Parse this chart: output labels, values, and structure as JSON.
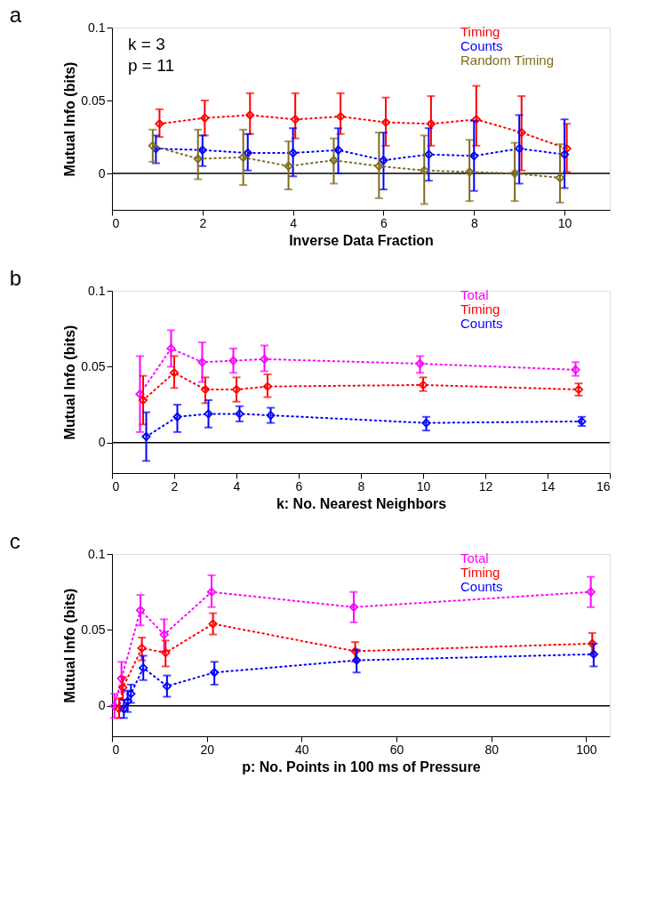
{
  "chart_data": [
    {
      "type": "line",
      "title": "a",
      "xlabel": "Inverse Data Fraction",
      "ylabel": "Mutual Info (bits)",
      "xlim": [
        0,
        11
      ],
      "xticks": [
        0,
        2,
        4,
        6,
        8,
        10
      ],
      "ylim": [
        -0.025,
        0.1
      ],
      "yticks": [
        0,
        0.05,
        0.1
      ],
      "grid": false,
      "legend": "top right",
      "marker": "diamond",
      "line_style": "dotted",
      "annotations": [
        "k = 3",
        "p = 11"
      ],
      "ref_lines": [
        {
          "axis": "y",
          "value": 0,
          "color": "#000000",
          "line_style": "solid"
        }
      ],
      "series": [
        {
          "name": "Timing",
          "color": "#ff0000",
          "x": [
            1.05,
            2.05,
            3.05,
            4.05,
            5.05,
            6.05,
            7.05,
            8.05,
            9.05,
            10.05
          ],
          "values": [
            0.034,
            0.038,
            0.04,
            0.037,
            0.039,
            0.035,
            0.034,
            0.037,
            0.028,
            0.017
          ],
          "errors": [
            [
              0.025,
              0.044
            ],
            [
              0.026,
              0.05
            ],
            [
              0.027,
              0.055
            ],
            [
              0.024,
              0.055
            ],
            [
              0.027,
              0.055
            ],
            [
              0.019,
              0.052
            ],
            [
              0.019,
              0.053
            ],
            [
              0.019,
              0.06
            ],
            [
              0.002,
              0.053
            ],
            [
              0.001,
              0.034
            ]
          ]
        },
        {
          "name": "Counts",
          "color": "#0000ff",
          "x": [
            0.97,
            2.0,
            3.0,
            4.0,
            5.0,
            6.0,
            7.0,
            8.0,
            9.0,
            10.0
          ],
          "values": [
            0.017,
            0.016,
            0.014,
            0.014,
            0.016,
            0.009,
            0.013,
            0.012,
            0.017,
            0.013
          ],
          "errors": [
            [
              0.007,
              0.026
            ],
            [
              0.005,
              0.026
            ],
            [
              0.002,
              0.027
            ],
            [
              -0.002,
              0.031
            ],
            [
              0.0,
              0.031
            ],
            [
              -0.011,
              0.028
            ],
            [
              -0.005,
              0.031
            ],
            [
              -0.012,
              0.036
            ],
            [
              -0.007,
              0.04
            ],
            [
              -0.01,
              0.037
            ]
          ]
        },
        {
          "name": "Random Timing",
          "color": "#7f6b1e",
          "x": [
            0.9,
            1.9,
            2.9,
            3.9,
            4.9,
            5.9,
            6.9,
            7.9,
            8.9,
            9.9
          ],
          "values": [
            0.019,
            0.01,
            0.011,
            0.005,
            0.009,
            0.005,
            0.002,
            0.001,
            0.0,
            -0.003
          ],
          "errors": [
            [
              0.008,
              0.03
            ],
            [
              -0.004,
              0.03
            ],
            [
              -0.008,
              0.03
            ],
            [
              -0.011,
              0.022
            ],
            [
              -0.007,
              0.024
            ],
            [
              -0.017,
              0.028
            ],
            [
              -0.021,
              0.026
            ],
            [
              -0.019,
              0.023
            ],
            [
              -0.019,
              0.021
            ],
            [
              -0.02,
              0.02
            ]
          ]
        }
      ]
    },
    {
      "type": "line",
      "title": "b",
      "xlabel": "k: No. Nearest Neighbors",
      "ylabel": "Mutual Info (bits)",
      "xlim": [
        0,
        16
      ],
      "xticks": [
        0,
        2,
        4,
        6,
        8,
        10,
        12,
        14,
        16
      ],
      "ylim": [
        -0.02,
        0.1
      ],
      "yticks": [
        0,
        0.05,
        0.1
      ],
      "grid": false,
      "legend": "top right",
      "marker": "diamond",
      "line_style": "dotted",
      "ref_lines": [
        {
          "axis": "y",
          "value": 0,
          "color": "#000000",
          "line_style": "solid"
        }
      ],
      "series": [
        {
          "name": "Total",
          "color": "#ff00ff",
          "x": [
            0.9,
            1.9,
            2.9,
            3.9,
            4.9,
            9.9,
            14.9
          ],
          "values": [
            0.032,
            0.062,
            0.053,
            0.054,
            0.055,
            0.052,
            0.048
          ],
          "errors": [
            [
              0.007,
              0.057
            ],
            [
              0.05,
              0.074
            ],
            [
              0.04,
              0.066
            ],
            [
              0.046,
              0.062
            ],
            [
              0.047,
              0.064
            ],
            [
              0.046,
              0.057
            ],
            [
              0.044,
              0.053
            ]
          ]
        },
        {
          "name": "Timing",
          "color": "#ff0000",
          "x": [
            1.0,
            2.0,
            3.0,
            4.0,
            5.0,
            10.0,
            15.0
          ],
          "values": [
            0.028,
            0.046,
            0.035,
            0.035,
            0.037,
            0.038,
            0.035
          ],
          "errors": [
            [
              0.012,
              0.044
            ],
            [
              0.036,
              0.057
            ],
            [
              0.026,
              0.043
            ],
            [
              0.027,
              0.043
            ],
            [
              0.03,
              0.045
            ],
            [
              0.034,
              0.043
            ],
            [
              0.031,
              0.039
            ]
          ]
        },
        {
          "name": "Counts",
          "color": "#0000ff",
          "x": [
            1.1,
            2.1,
            3.1,
            4.1,
            5.1,
            10.1,
            15.1
          ],
          "values": [
            0.004,
            0.017,
            0.019,
            0.019,
            0.018,
            0.013,
            0.014
          ],
          "errors": [
            [
              -0.012,
              0.02
            ],
            [
              0.007,
              0.025
            ],
            [
              0.01,
              0.028
            ],
            [
              0.014,
              0.024
            ],
            [
              0.013,
              0.023
            ],
            [
              0.008,
              0.017
            ],
            [
              0.011,
              0.017
            ]
          ]
        }
      ]
    },
    {
      "type": "line",
      "title": "c",
      "xlabel": "p: No. Points in 100 ms of Pressure",
      "ylabel": "Mutual Info (bits)",
      "xlim": [
        0,
        105
      ],
      "xticks": [
        0,
        20,
        40,
        60,
        80,
        100
      ],
      "ylim": [
        -0.02,
        0.1
      ],
      "yticks": [
        0,
        0.05,
        0.1
      ],
      "grid": false,
      "legend": "top right",
      "marker": "diamond",
      "line_style": "dotted",
      "ref_lines": [
        {
          "axis": "y",
          "value": 0,
          "color": "#000000",
          "line_style": "solid"
        }
      ],
      "series": [
        {
          "name": "Total",
          "color": "#ff00ff",
          "x": [
            0.5,
            2,
            6,
            11,
            21,
            51,
            101
          ],
          "values": [
            0.0,
            0.018,
            0.063,
            0.047,
            0.075,
            0.065,
            0.075
          ],
          "errors": [
            [
              -0.008,
              0.008
            ],
            [
              0.009,
              0.029
            ],
            [
              0.053,
              0.073
            ],
            [
              0.036,
              0.057
            ],
            [
              0.065,
              0.086
            ],
            [
              0.055,
              0.075
            ],
            [
              0.065,
              0.085
            ]
          ]
        },
        {
          "name": "Timing",
          "color": "#ff0000",
          "x": [
            1.5,
            2.3,
            6.3,
            11.3,
            21.3,
            51.3,
            101.3
          ],
          "values": [
            -0.002,
            0.012,
            0.038,
            0.035,
            0.054,
            0.036,
            0.041
          ],
          "errors": [
            [
              -0.008,
              0.005
            ],
            [
              0.004,
              0.019
            ],
            [
              0.03,
              0.045
            ],
            [
              0.026,
              0.043
            ],
            [
              0.047,
              0.061
            ],
            [
              0.029,
              0.042
            ],
            [
              0.034,
              0.048
            ]
          ]
        },
        {
          "name": "Counts",
          "color": "#0000ff",
          "x": [
            2.5,
            3.3,
            4.0,
            6.6,
            11.6,
            21.6,
            51.6,
            101.6
          ],
          "values": [
            -0.002,
            0.003,
            0.008,
            0.025,
            0.013,
            0.022,
            0.03,
            0.034
          ],
          "errors": [
            [
              -0.008,
              0.004
            ],
            [
              -0.004,
              0.01
            ],
            [
              0.002,
              0.014
            ],
            [
              0.017,
              0.033
            ],
            [
              0.006,
              0.02
            ],
            [
              0.014,
              0.029
            ],
            [
              0.022,
              0.037
            ],
            [
              0.026,
              0.041
            ]
          ]
        }
      ]
    }
  ]
}
